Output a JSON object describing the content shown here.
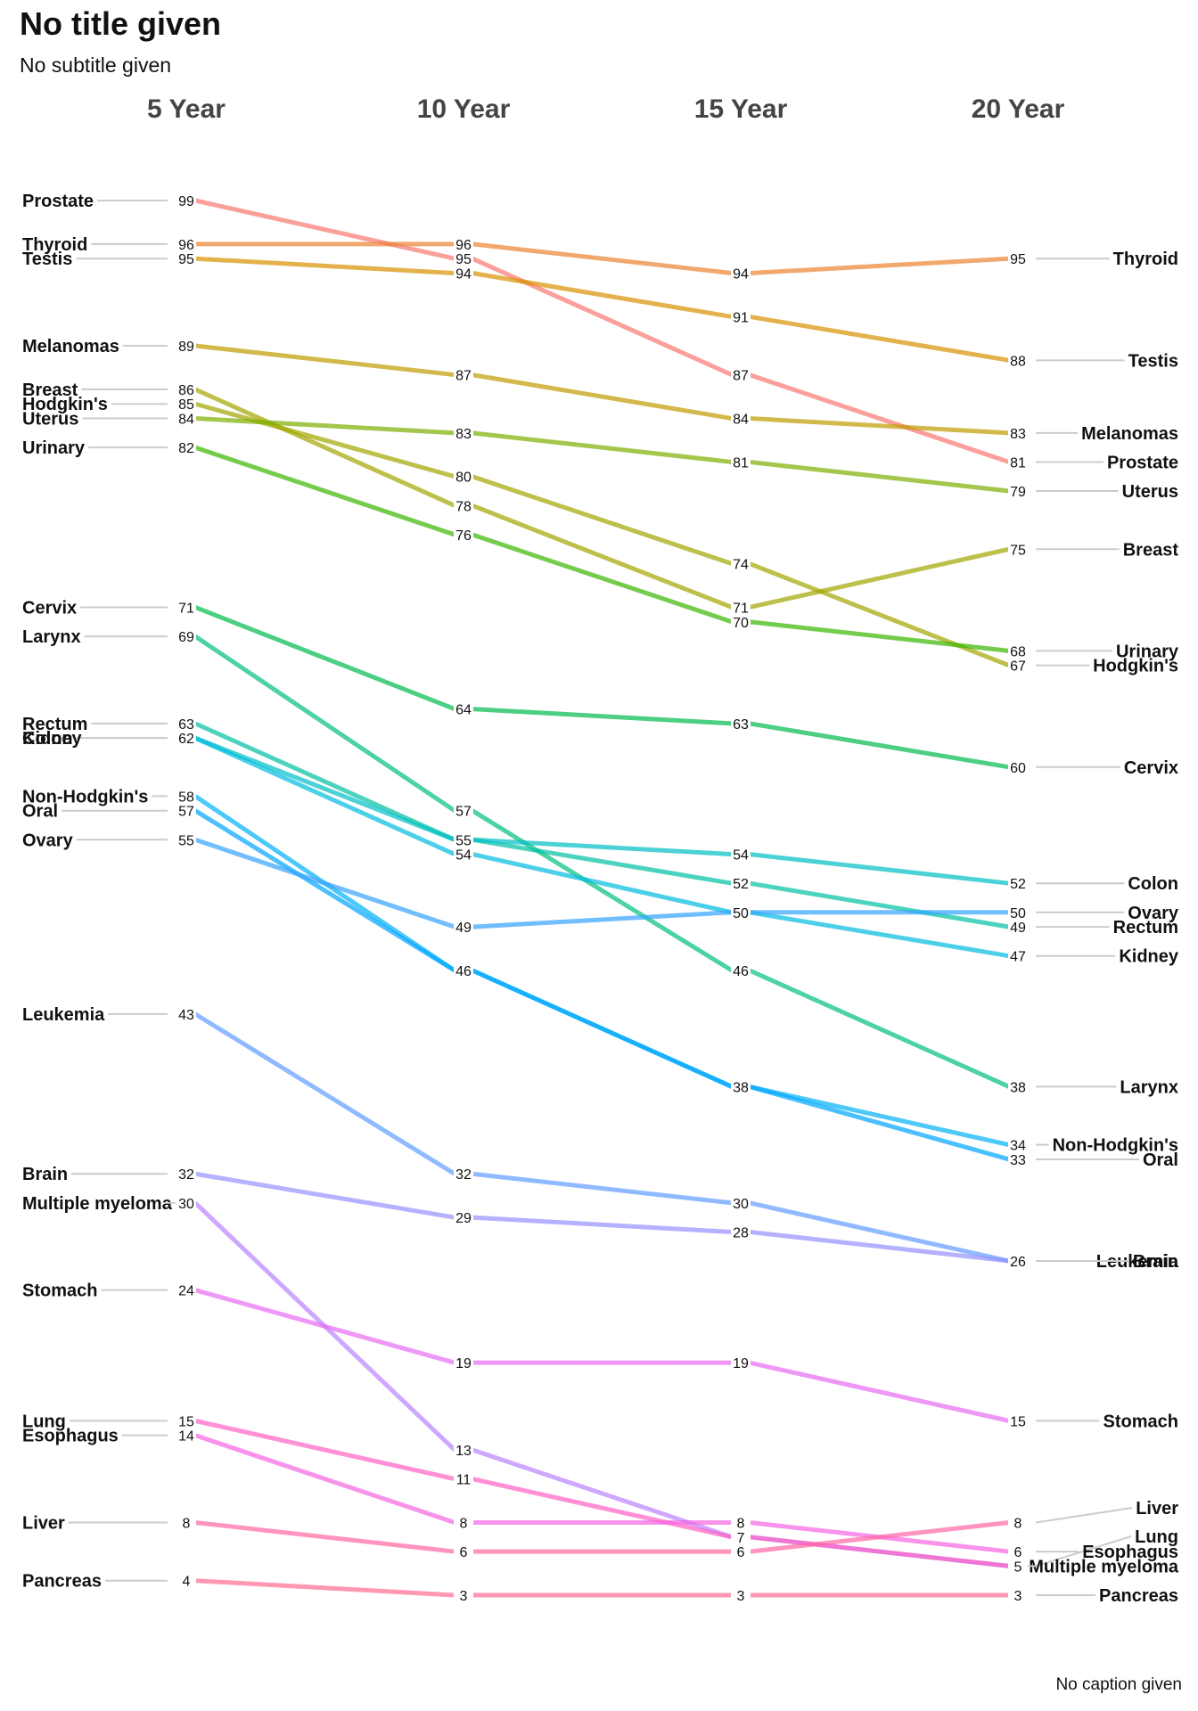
{
  "title": "No title given",
  "subtitle": "No subtitle given",
  "caption": "No caption given",
  "chart_data": {
    "type": "slope",
    "columns": [
      "5 Year",
      "10 Year",
      "15 Year",
      "20 Year"
    ],
    "series": [
      {
        "name": "Prostate",
        "values": [
          99,
          95,
          87,
          81
        ],
        "color": "#F8766D"
      },
      {
        "name": "Thyroid",
        "values": [
          96,
          96,
          94,
          95
        ],
        "color": "#EA8331"
      },
      {
        "name": "Testis",
        "values": [
          95,
          94,
          91,
          88
        ],
        "color": "#D89000"
      },
      {
        "name": "Melanomas",
        "values": [
          89,
          87,
          84,
          83
        ],
        "color": "#C09B00"
      },
      {
        "name": "Breast",
        "values": [
          86,
          78,
          71,
          75
        ],
        "color": "#A3A500"
      },
      {
        "name": "Hodgkin's",
        "values": [
          85,
          80,
          74,
          67
        ],
        "color": "#A3A500"
      },
      {
        "name": "Uterus",
        "values": [
          84,
          83,
          81,
          79
        ],
        "color": "#7CAE00"
      },
      {
        "name": "Urinary",
        "values": [
          82,
          76,
          70,
          68
        ],
        "color": "#39B600"
      },
      {
        "name": "Cervix",
        "values": [
          71,
          64,
          63,
          60
        ],
        "color": "#00BB4E"
      },
      {
        "name": "Larynx",
        "values": [
          69,
          57,
          46,
          38
        ],
        "color": "#00BF7D"
      },
      {
        "name": "Rectum",
        "values": [
          63,
          55,
          52,
          49
        ],
        "color": "#00C1A3"
      },
      {
        "name": "Colon",
        "values": [
          62,
          55,
          54,
          52
        ],
        "color": "#00BFC4"
      },
      {
        "name": "Kidney",
        "values": [
          62,
          54,
          50,
          47
        ],
        "color": "#00BAE0"
      },
      {
        "name": "Non-Hodgkin's",
        "values": [
          58,
          46,
          38,
          34
        ],
        "color": "#00B0F6"
      },
      {
        "name": "Oral",
        "values": [
          57,
          46,
          38,
          33
        ],
        "color": "#00A5FF"
      },
      {
        "name": "Ovary",
        "values": [
          55,
          49,
          50,
          50
        ],
        "color": "#35A2FF"
      },
      {
        "name": "Leukemia",
        "values": [
          43,
          32,
          30,
          26
        ],
        "color": "#619CFF"
      },
      {
        "name": "Brain",
        "values": [
          32,
          29,
          28,
          26
        ],
        "color": "#9590FF"
      },
      {
        "name": "Multiple myeloma",
        "values": [
          30,
          13,
          7,
          5
        ],
        "color": "#B983FF"
      },
      {
        "name": "Stomach",
        "values": [
          24,
          19,
          19,
          15
        ],
        "color": "#E76BF3"
      },
      {
        "name": "Lung",
        "values": [
          15,
          11,
          7,
          5
        ],
        "color": "#FF61C3"
      },
      {
        "name": "Esophagus",
        "values": [
          14,
          8,
          8,
          6
        ],
        "color": "#F564E3"
      },
      {
        "name": "Liver",
        "values": [
          8,
          6,
          6,
          8
        ],
        "color": "#FF67A4"
      },
      {
        "name": "Pancreas",
        "values": [
          4,
          3,
          3,
          3
        ],
        "color": "#FF6C91"
      }
    ],
    "left_labels": [
      "Prostate",
      "Thyroid",
      "Testis",
      "Melanomas",
      "Breast",
      "Hodgkin's",
      "Uterus",
      "Urinary",
      "Cervix",
      "Larynx",
      "Rectum",
      "Colon",
      "Kidney",
      "Non-Hodgkin's",
      "Oral",
      "Ovary",
      "Leukemia",
      "Brain",
      "Multiple myeloma",
      "Stomach",
      "Lung",
      "Esophagus",
      "Liver",
      "Pancreas"
    ],
    "right_labels": [
      "Thyroid",
      "Testis",
      "Melanomas",
      "Prostate",
      "Uterus",
      "Breast",
      "Urinary",
      "Hodgkin's",
      "Cervix",
      "Colon",
      "Ovary",
      "Rectum",
      "Kidney",
      "Larynx",
      "Non-Hodgkin's",
      "Oral",
      "Leukemia",
      "Brain",
      "Stomach",
      "Liver",
      "Lung",
      "Esophagus",
      "Multiple myeloma",
      "Pancreas"
    ],
    "ylim": [
      3,
      99
    ],
    "grid": false,
    "legend": "none"
  }
}
